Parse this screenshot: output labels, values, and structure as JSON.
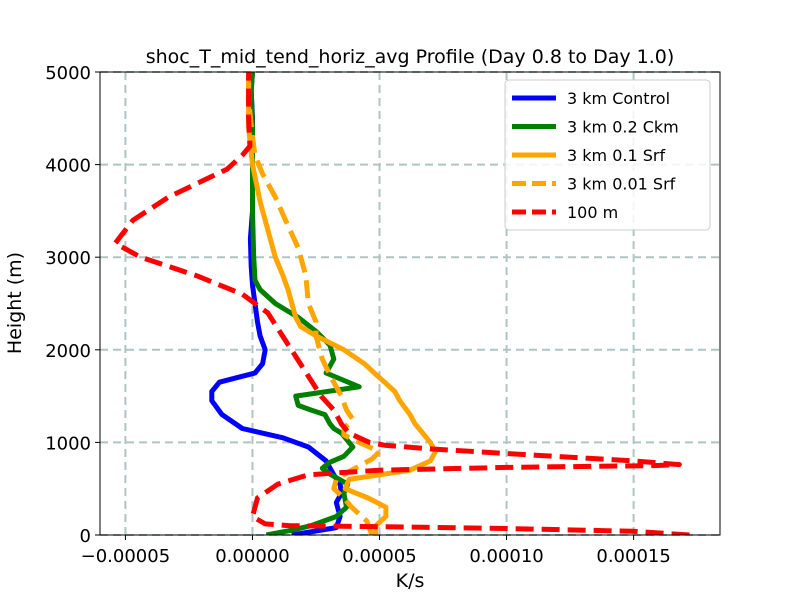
{
  "chart_data": {
    "type": "line",
    "title": "shoc_T_mid_tend_horiz_avg Profile (Day 0.8 to Day 1.0)",
    "xlabel": "K/s",
    "ylabel": "Height (m)",
    "xlim": [
      -6e-05,
      0.000184
    ],
    "ylim": [
      0,
      5000
    ],
    "xticks": [
      -5e-05,
      0.0,
      5e-05,
      0.0001,
      0.00015
    ],
    "xtick_labels": [
      "−0.00005",
      "0.00000",
      "0.00005",
      "0.00010",
      "0.00015"
    ],
    "yticks": [
      0,
      1000,
      2000,
      3000,
      4000,
      5000
    ],
    "ytick_labels": [
      "0",
      "1000",
      "2000",
      "3000",
      "4000",
      "5000"
    ],
    "grid": true,
    "legend_position": "upper-right",
    "series": [
      {
        "name": "3 km Control",
        "color": "#0000ff",
        "style": "solid",
        "points": [
          [
            1.55e-05,
            0
          ],
          [
            3.3e-05,
            80
          ],
          [
            3.45e-05,
            200
          ],
          [
            3.3e-05,
            350
          ],
          [
            3.5e-05,
            450
          ],
          [
            3.45e-05,
            550
          ],
          [
            3.2e-05,
            650
          ],
          [
            2.9e-05,
            800
          ],
          [
            2.2e-05,
            950
          ],
          [
            1.2e-05,
            1050
          ],
          [
            -4e-06,
            1150
          ],
          [
            -1.2e-05,
            1300
          ],
          [
            -1.6e-05,
            1450
          ],
          [
            -1.6e-05,
            1550
          ],
          [
            -1.3e-05,
            1650
          ],
          [
            -6e-06,
            1700
          ],
          [
            1e-06,
            1750
          ],
          [
            4e-06,
            1850
          ],
          [
            5e-06,
            2000
          ],
          [
            3e-06,
            2150
          ],
          [
            2e-06,
            2300
          ],
          [
            1e-06,
            2500
          ],
          [
            0.0,
            2700
          ],
          [
            -5e-07,
            2900
          ],
          [
            -8e-07,
            3200
          ],
          [
            0.0,
            3500
          ],
          [
            0.0,
            4000
          ],
          [
            0.0,
            4500
          ],
          [
            -5e-07,
            4800
          ],
          [
            0.0,
            5000
          ]
        ]
      },
      {
        "name": "3 km 0.2 Ckm",
        "color": "#008000",
        "style": "solid",
        "points": [
          [
            5.5e-06,
            0
          ],
          [
            1.5e-05,
            50
          ],
          [
            2.3e-05,
            100
          ],
          [
            3.3e-05,
            200
          ],
          [
            3.7e-05,
            300
          ],
          [
            3.6e-05,
            450
          ],
          [
            3.75e-05,
            550
          ],
          [
            3.1e-05,
            650
          ],
          [
            2.75e-05,
            720
          ],
          [
            3e-05,
            780
          ],
          [
            3.6e-05,
            850
          ],
          [
            3.95e-05,
            950
          ],
          [
            3.5e-05,
            1100
          ],
          [
            3.2e-05,
            1150
          ],
          [
            3.05e-05,
            1200
          ],
          [
            2.85e-05,
            1300
          ],
          [
            2.3e-05,
            1350
          ],
          [
            1.8e-05,
            1400
          ],
          [
            1.7e-05,
            1500
          ],
          [
            4.2e-05,
            1600
          ],
          [
            2.9e-05,
            1750
          ],
          [
            3.2e-05,
            1900
          ],
          [
            3.05e-05,
            2050
          ],
          [
            2.5e-05,
            2200
          ],
          [
            1.8e-05,
            2350
          ],
          [
            9e-06,
            2500
          ],
          [
            3e-06,
            2650
          ],
          [
            1e-06,
            2750
          ],
          [
            5e-07,
            3000
          ],
          [
            0.0,
            3500
          ],
          [
            0.0,
            4000
          ],
          [
            0.0,
            4400
          ],
          [
            -5e-07,
            4800
          ],
          [
            0.0,
            5000
          ]
        ]
      },
      {
        "name": "3 km 0.1 Srf",
        "color": "#ffa500",
        "style": "solid",
        "points": [
          [
            4.85e-05,
            0
          ],
          [
            4.85e-05,
            100
          ],
          [
            5.25e-05,
            200
          ],
          [
            5.25e-05,
            300
          ],
          [
            4.55e-05,
            400
          ],
          [
            3.65e-05,
            500
          ],
          [
            3.8e-05,
            600
          ],
          [
            5e-05,
            650
          ],
          [
            6.2e-05,
            700
          ],
          [
            7e-05,
            800
          ],
          [
            7.2e-05,
            900
          ],
          [
            7e-05,
            1000
          ],
          [
            6.7e-05,
            1100
          ],
          [
            6.4e-05,
            1200
          ],
          [
            6.2e-05,
            1300
          ],
          [
            5.8e-05,
            1450
          ],
          [
            5.6e-05,
            1550
          ],
          [
            5.2e-05,
            1650
          ],
          [
            4.8e-05,
            1750
          ],
          [
            4.4e-05,
            1850
          ],
          [
            3.6e-05,
            2000
          ],
          [
            2.5e-05,
            2150
          ],
          [
            1.9e-05,
            2250
          ],
          [
            1.7e-05,
            2350
          ],
          [
            1.5e-05,
            2550
          ],
          [
            1.4e-05,
            2650
          ],
          [
            1.2e-05,
            2800
          ],
          [
            9e-06,
            3000
          ],
          [
            6e-06,
            3300
          ],
          [
            3e-06,
            3600
          ],
          [
            1.5e-06,
            3800
          ],
          [
            0.0,
            4000
          ],
          [
            -1.5e-06,
            4400
          ],
          [
            -1.5e-06,
            4700
          ],
          [
            -1.5e-06,
            5000
          ]
        ]
      },
      {
        "name": "3 km 0.01 Srf",
        "color": "#ffa500",
        "style": "dashed",
        "points": [
          [
            4.7e-05,
            0
          ],
          [
            4.5e-05,
            150
          ],
          [
            3.9e-05,
            300
          ],
          [
            3.6e-05,
            400
          ],
          [
            3.2e-05,
            500
          ],
          [
            3.3e-05,
            600
          ],
          [
            3.9e-05,
            700
          ],
          [
            4.7e-05,
            820
          ],
          [
            5e-05,
            900
          ],
          [
            4.2e-05,
            1000
          ],
          [
            3.6e-05,
            1080
          ],
          [
            3.6e-05,
            1150
          ],
          [
            3.95e-05,
            1250
          ],
          [
            3.7e-05,
            1350
          ],
          [
            3.5e-05,
            1500
          ],
          [
            3.1e-05,
            1700
          ],
          [
            2.75e-05,
            1900
          ],
          [
            2.5e-05,
            2150
          ],
          [
            2.5e-05,
            2300
          ],
          [
            2.2e-05,
            2500
          ],
          [
            2.1e-05,
            2800
          ],
          [
            1.8e-05,
            3100
          ],
          [
            1.3e-05,
            3400
          ],
          [
            9e-06,
            3650
          ],
          [
            4e-06,
            3900
          ],
          [
            1e-06,
            4100
          ],
          [
            0.0,
            4300
          ],
          [
            -1.5e-06,
            4700
          ],
          [
            -1.5e-06,
            5000
          ]
        ]
      },
      {
        "name": "100 m",
        "color": "#ff0000",
        "style": "dashed",
        "points": [
          [
            0.000172,
            0
          ],
          [
            0.00015,
            40
          ],
          [
            0.0001,
            70
          ],
          [
            5e-05,
            90
          ],
          [
            1.5e-05,
            100
          ],
          [
            5e-06,
            120
          ],
          [
            0.0,
            200
          ],
          [
            2e-06,
            400
          ],
          [
            1e-05,
            550
          ],
          [
            2.2e-05,
            650
          ],
          [
            5e-05,
            700
          ],
          [
            0.0001,
            730
          ],
          [
            0.000158,
            750
          ],
          [
            0.000168,
            760
          ],
          [
            0.00015,
            800
          ],
          [
            0.0001,
            880
          ],
          [
            7e-05,
            930
          ],
          [
            5.2e-05,
            970
          ],
          [
            4.6e-05,
            1000
          ],
          [
            4.2e-05,
            1050
          ],
          [
            3.8e-05,
            1100
          ],
          [
            3.5e-05,
            1200
          ],
          [
            3.2e-05,
            1350
          ],
          [
            2.7e-05,
            1500
          ],
          [
            2e-05,
            1800
          ],
          [
            1.3e-05,
            2100
          ],
          [
            6e-06,
            2400
          ],
          [
            -4e-06,
            2600
          ],
          [
            -2.2e-05,
            2800
          ],
          [
            -4.4e-05,
            3000
          ],
          [
            -5.4e-05,
            3150
          ],
          [
            -4.7e-05,
            3400
          ],
          [
            -3.3e-05,
            3650
          ],
          [
            -1e-05,
            3950
          ],
          [
            -4e-06,
            4100
          ],
          [
            -1e-06,
            4200
          ],
          [
            -1.5e-06,
            4500
          ],
          [
            -1.5e-06,
            4800
          ],
          [
            -1.5e-06,
            5000
          ]
        ]
      }
    ]
  }
}
